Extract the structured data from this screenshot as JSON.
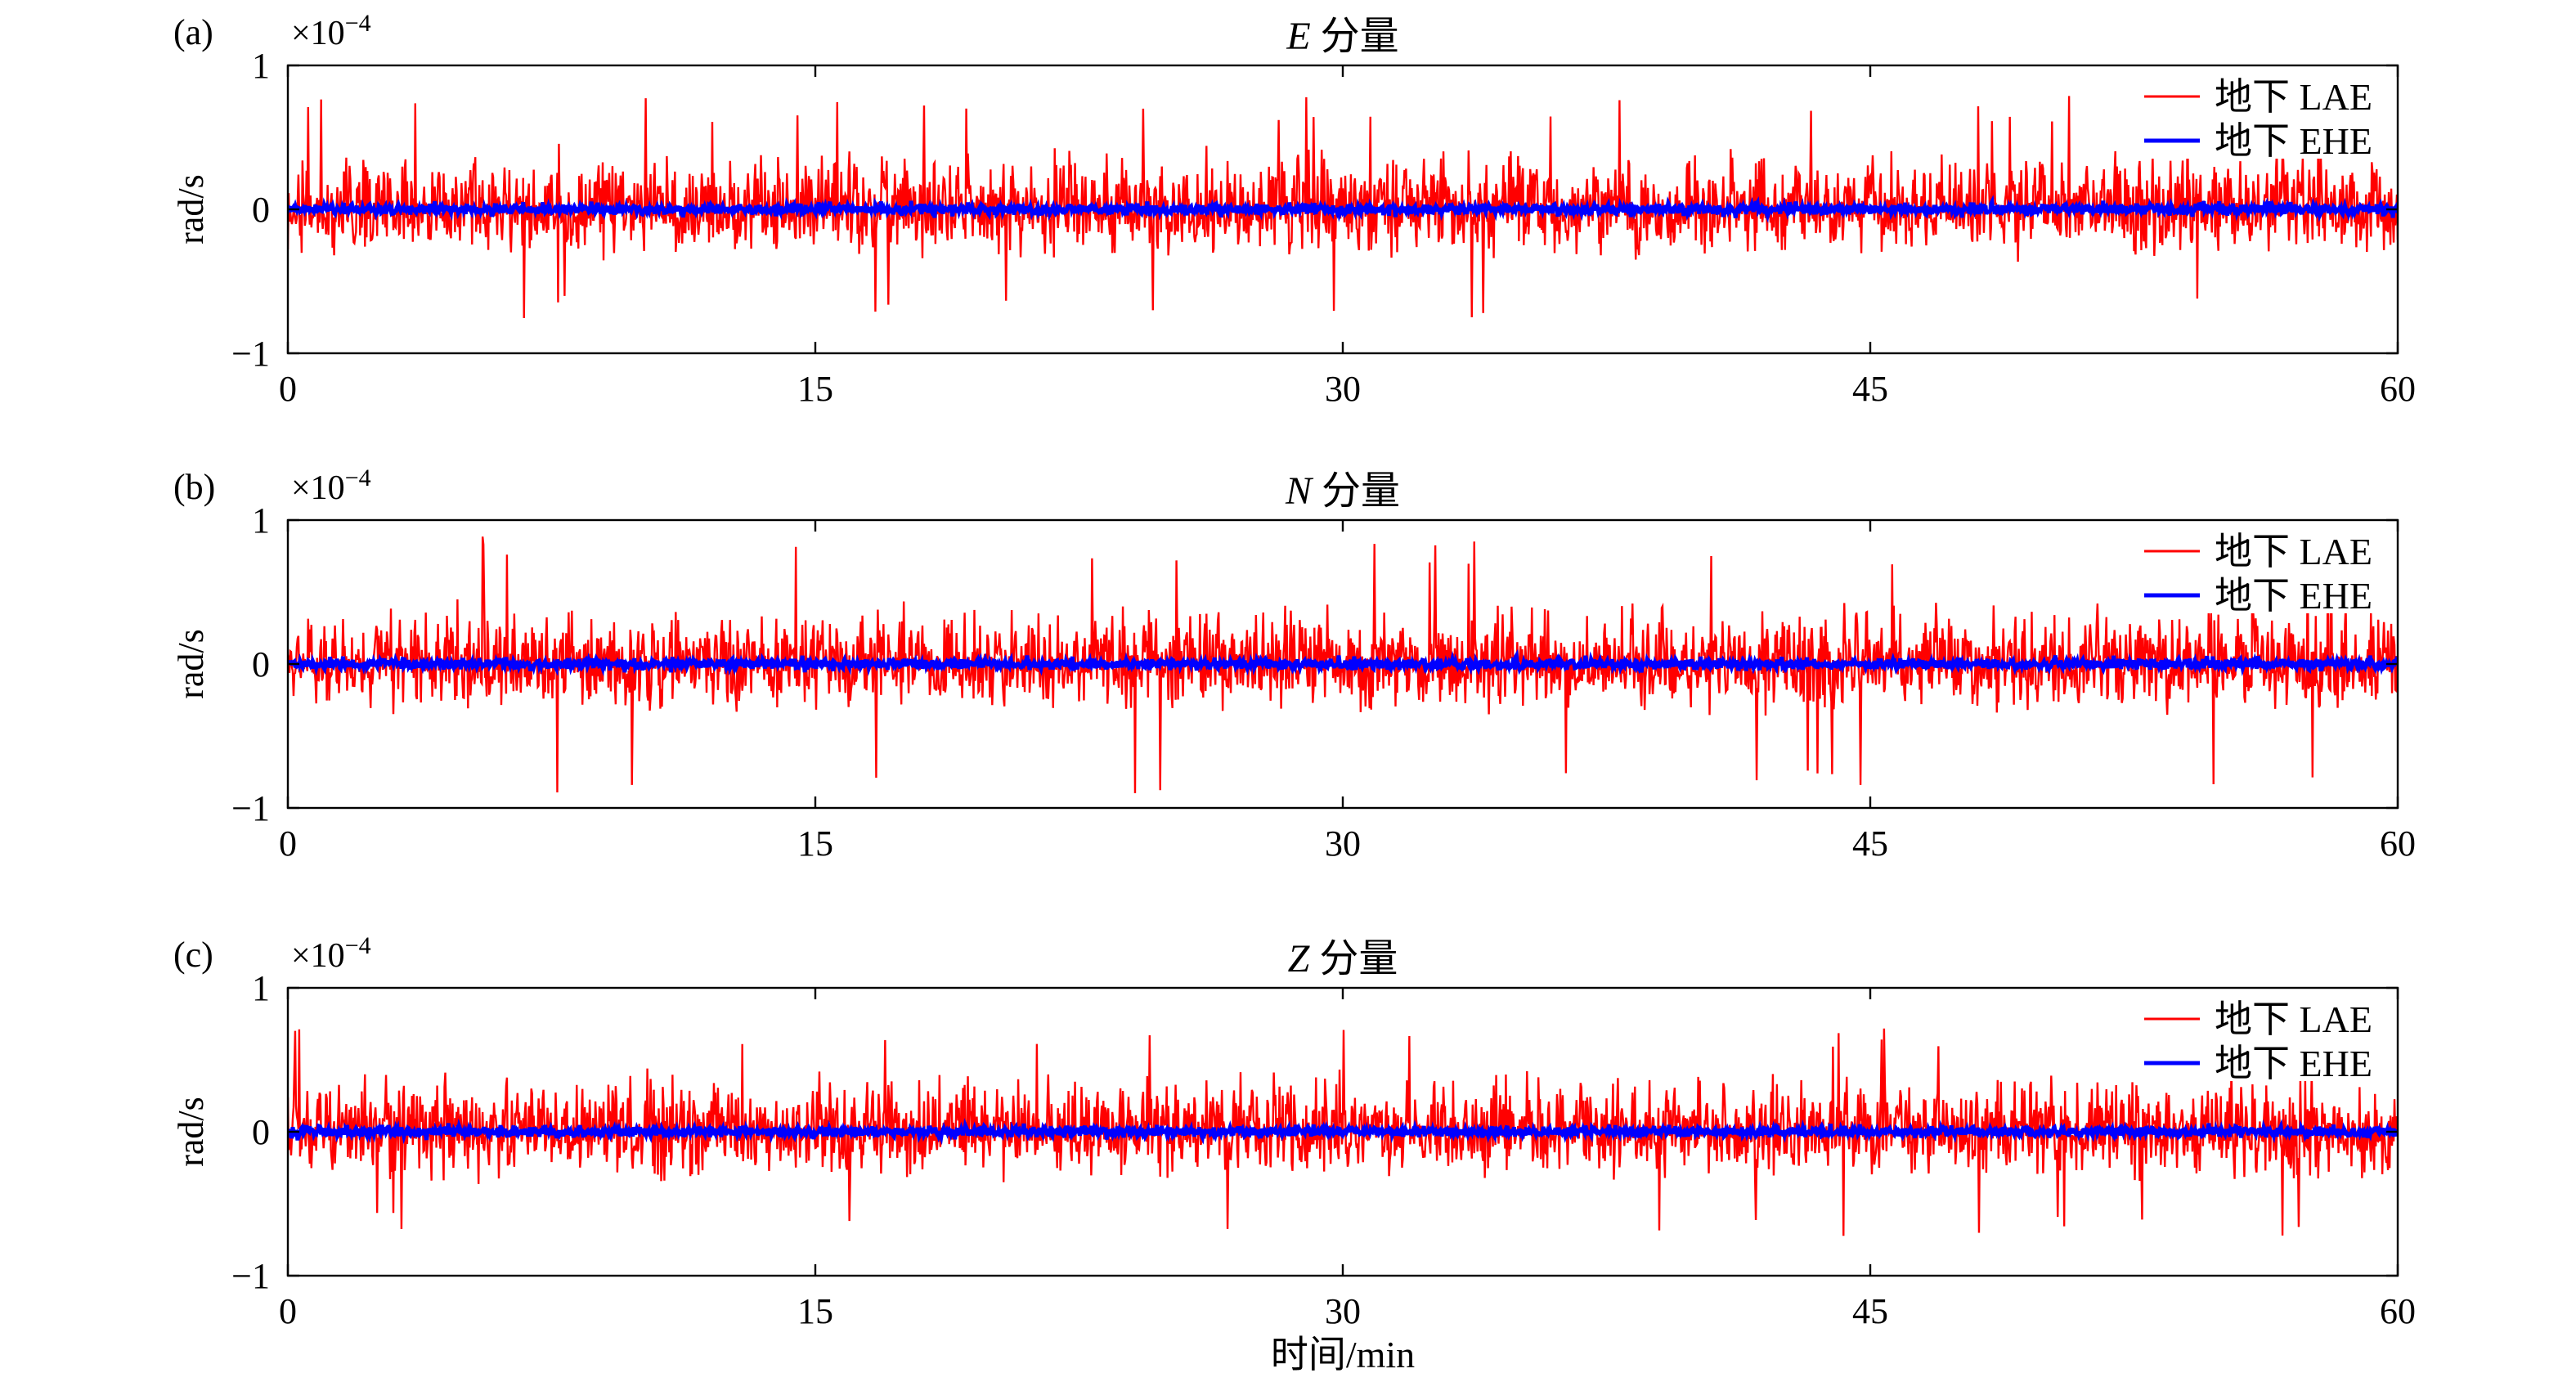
{
  "chart_data": [
    {
      "type": "line",
      "panel_tag": "(a)",
      "title_italic": "E",
      "title_rest": " 分量",
      "ylabel": "rad/s",
      "y_multiplier": "×10",
      "y_exponent": "−4",
      "xlim": [
        0,
        60
      ],
      "ylim": [
        -1,
        1
      ],
      "xticks": [
        0,
        15,
        30,
        45,
        60
      ],
      "yticks": [
        -1,
        0,
        1
      ],
      "ytick_labels": [
        "−1",
        "0",
        "1"
      ],
      "legend_position": "top-right",
      "series": [
        {
          "name": "地下 LAE",
          "color": "#ff0000",
          "amplitude_peak": 0.8,
          "typical_range": [
            -0.4,
            0.5
          ]
        },
        {
          "name": "地下 EHE",
          "color": "#0000ff",
          "amplitude_peak": 0.06,
          "typical_range": [
            -0.05,
            0.05
          ]
        }
      ]
    },
    {
      "type": "line",
      "panel_tag": "(b)",
      "title_italic": "N",
      "title_rest": " 分量",
      "ylabel": "rad/s",
      "y_multiplier": "×10",
      "y_exponent": "−4",
      "xlim": [
        0,
        60
      ],
      "ylim": [
        -1,
        1
      ],
      "xticks": [
        0,
        15,
        30,
        45,
        60
      ],
      "yticks": [
        -1,
        0,
        1
      ],
      "ytick_labels": [
        "−1",
        "0",
        "1"
      ],
      "legend_position": "top-right",
      "series": [
        {
          "name": "地下 LAE",
          "color": "#ff0000",
          "amplitude_peak": 0.9,
          "typical_range": [
            -0.4,
            0.5
          ]
        },
        {
          "name": "地下 EHE",
          "color": "#0000ff",
          "amplitude_peak": 0.06,
          "typical_range": [
            -0.05,
            0.05
          ]
        }
      ]
    },
    {
      "type": "line",
      "panel_tag": "(c)",
      "title_italic": "Z",
      "title_rest": " 分量",
      "ylabel": "rad/s",
      "y_multiplier": "×10",
      "y_exponent": "−4",
      "xlim": [
        0,
        60
      ],
      "ylim": [
        -1,
        1
      ],
      "xticks": [
        0,
        15,
        30,
        45,
        60
      ],
      "yticks": [
        -1,
        0,
        1
      ],
      "ytick_labels": [
        "−1",
        "0",
        "1"
      ],
      "legend_position": "top-right",
      "series": [
        {
          "name": "地下 LAE",
          "color": "#ff0000",
          "amplitude_peak": 0.75,
          "typical_range": [
            -0.4,
            0.5
          ]
        },
        {
          "name": "地下 EHE",
          "color": "#0000ff",
          "amplitude_peak": 0.06,
          "typical_range": [
            -0.05,
            0.05
          ]
        }
      ]
    }
  ],
  "xlabel": "时间/min"
}
